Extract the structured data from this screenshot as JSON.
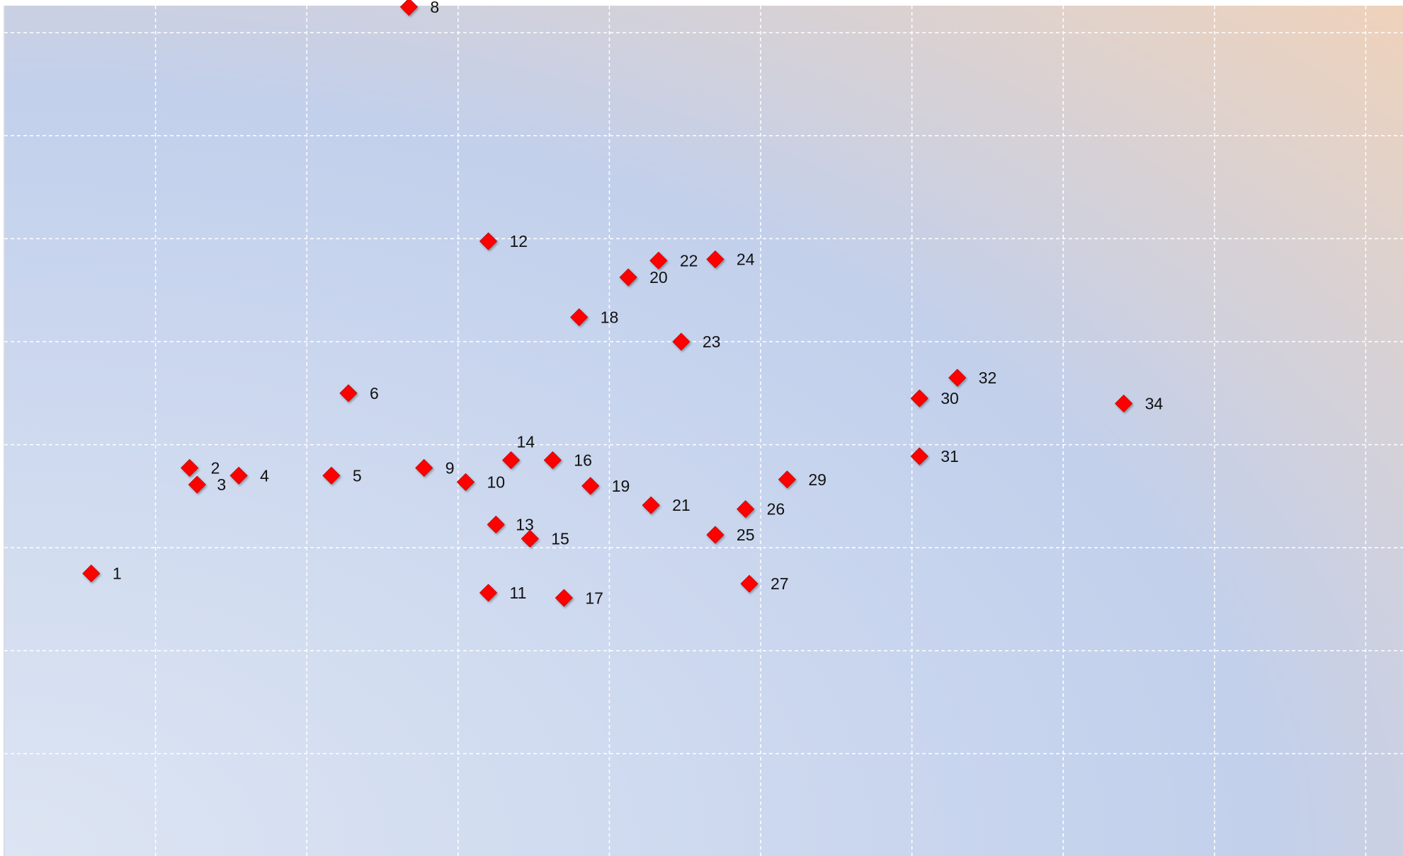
{
  "chart_data": {
    "type": "scatter",
    "title": "",
    "xlabel": "",
    "ylabel": "",
    "grid": true,
    "legend": "none",
    "xlim": [
      0,
      7.4
    ],
    "ylim": [
      0,
      6.6
    ],
    "marker": "diamond",
    "marker_color": "#FF0000",
    "background_gradient": [
      "#DDE5F3",
      "#C2D0EC",
      "#FBD3AE"
    ],
    "grid_color": "#FFFFFF",
    "points": [
      {
        "label": "1",
        "x": 0.46,
        "y": 2.2
      },
      {
        "label": "2",
        "x": 0.98,
        "y": 3.02
      },
      {
        "label": "3",
        "x": 1.02,
        "y": 2.89
      },
      {
        "label": "4",
        "x": 1.24,
        "y": 2.96
      },
      {
        "label": "5",
        "x": 1.73,
        "y": 2.96
      },
      {
        "label": "6",
        "x": 1.82,
        "y": 3.6
      },
      {
        "label": "8",
        "x": 2.14,
        "y": 6.6
      },
      {
        "label": "9",
        "x": 2.22,
        "y": 3.02
      },
      {
        "label": "10",
        "x": 2.44,
        "y": 2.91
      },
      {
        "label": "11",
        "x": 2.56,
        "y": 2.05
      },
      {
        "label": "12",
        "x": 2.56,
        "y": 4.78
      },
      {
        "label": "13",
        "x": 2.6,
        "y": 2.58
      },
      {
        "label": "14",
        "x": 2.68,
        "y": 3.08
      },
      {
        "label": "15",
        "x": 2.78,
        "y": 2.47
      },
      {
        "label": "16",
        "x": 2.9,
        "y": 3.08
      },
      {
        "label": "17",
        "x": 2.96,
        "y": 2.01
      },
      {
        "label": "18",
        "x": 3.04,
        "y": 4.19
      },
      {
        "label": "19",
        "x": 3.1,
        "y": 2.88
      },
      {
        "label": "20",
        "x": 3.3,
        "y": 4.5
      },
      {
        "label": "21",
        "x": 3.42,
        "y": 2.73
      },
      {
        "label": "22",
        "x": 3.46,
        "y": 4.63
      },
      {
        "label": "23",
        "x": 3.58,
        "y": 4.0
      },
      {
        "label": "24",
        "x": 3.76,
        "y": 4.64
      },
      {
        "label": "25",
        "x": 3.76,
        "y": 2.5
      },
      {
        "label": "26",
        "x": 3.92,
        "y": 2.7
      },
      {
        "label": "27",
        "x": 3.94,
        "y": 2.12
      },
      {
        "label": "29",
        "x": 4.14,
        "y": 2.93
      },
      {
        "label": "30",
        "x": 4.84,
        "y": 3.56
      },
      {
        "label": "31",
        "x": 4.84,
        "y": 3.11
      },
      {
        "label": "32",
        "x": 5.04,
        "y": 3.72
      },
      {
        "label": "34",
        "x": 5.92,
        "y": 3.52
      }
    ]
  }
}
